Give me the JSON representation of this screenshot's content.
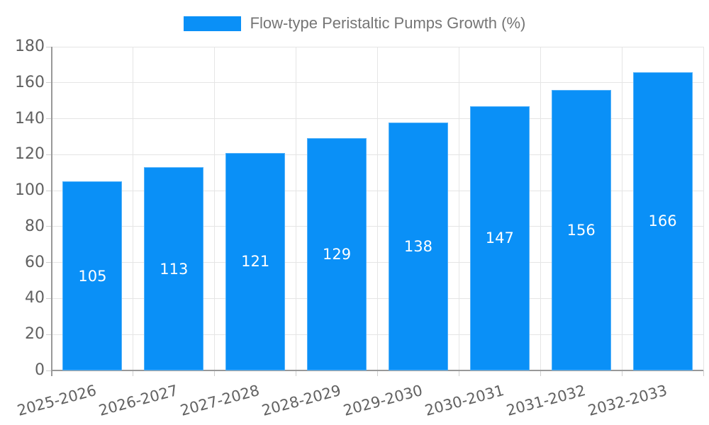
{
  "chart_data": {
    "type": "bar",
    "title": "Flow-type Peristaltic Pumps Growth (%)",
    "legend": {
      "label": "Flow-type Peristaltic Pumps Growth (%)",
      "position": "top"
    },
    "categories": [
      "2025-2026",
      "2026-2027",
      "2027-2028",
      "2028-2029",
      "2029-2030",
      "2030-2031",
      "2031-2032",
      "2032-2033"
    ],
    "values": [
      105,
      113,
      121,
      129,
      138,
      147,
      156,
      166
    ],
    "xlabel": "",
    "ylabel": "",
    "ylim": [
      0,
      180
    ],
    "ytick_step": 20,
    "yticks": [
      0,
      20,
      40,
      60,
      80,
      100,
      120,
      140,
      160,
      180
    ],
    "grid": true,
    "value_label_position": "inside-center",
    "colors": {
      "bar": "#0a90f7",
      "grid": "#e5e5e5",
      "axis": "#999999",
      "tick_mark": "#cfcfcf",
      "tick_label": "#616161",
      "legend_text": "#757575",
      "value_label": "#ffffff",
      "background": "#ffffff"
    }
  }
}
